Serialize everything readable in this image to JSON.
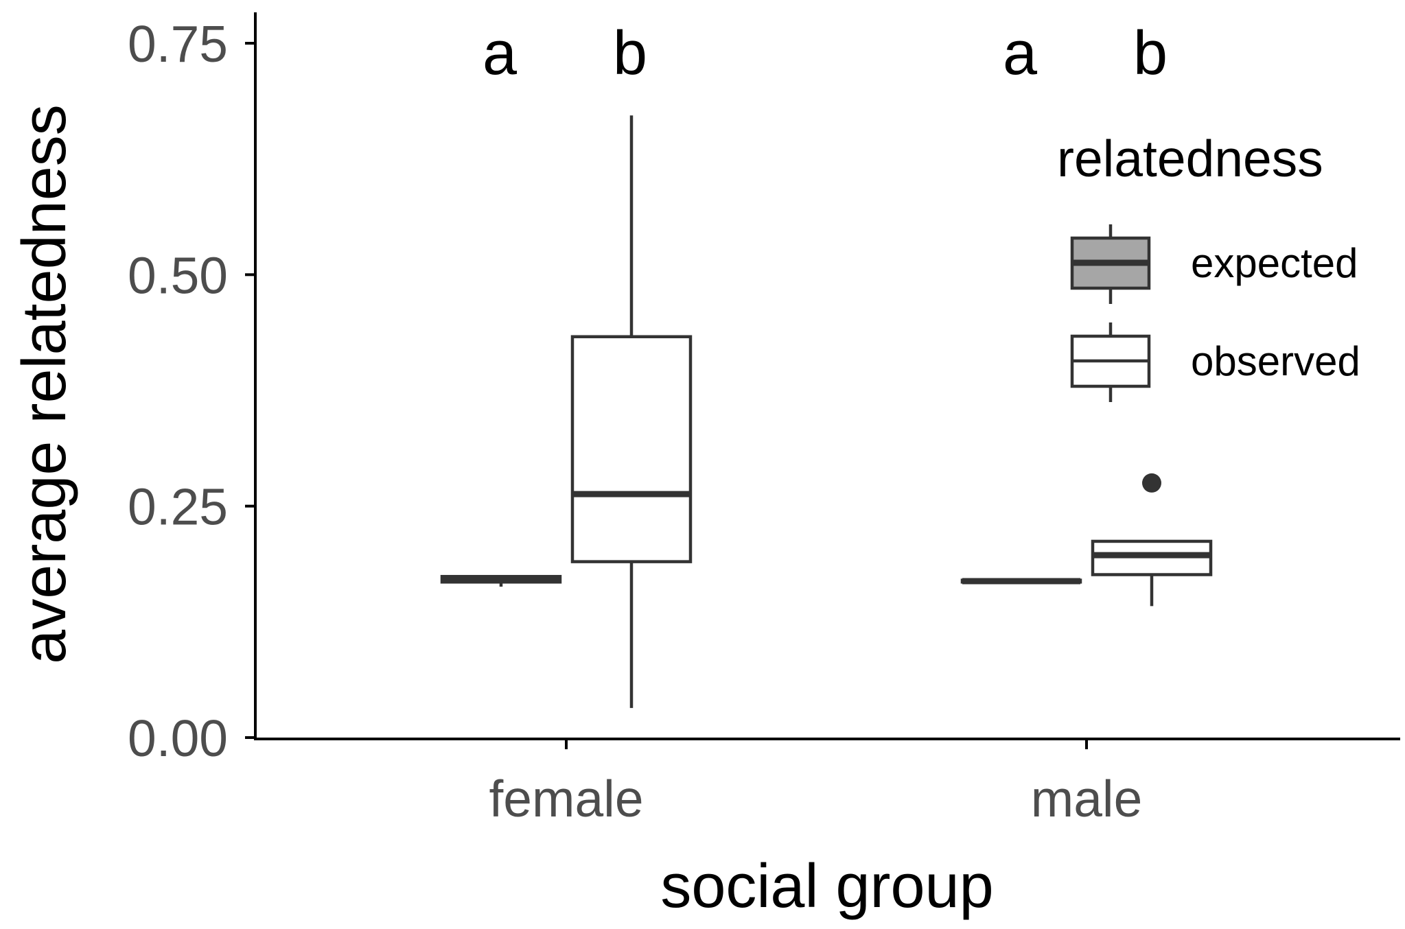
{
  "chart_data": {
    "type": "boxplot",
    "xlabel": "social group",
    "ylabel": "average relatedness",
    "ylim": [
      0,
      0.78
    ],
    "yticks": [
      0.0,
      0.25,
      0.5,
      0.75
    ],
    "ytick_labels": [
      "0.00",
      "0.25",
      "0.50",
      "0.75"
    ],
    "categories": [
      "female",
      "male"
    ],
    "legend": {
      "title": "relatedness",
      "position": "right",
      "entries": [
        {
          "name": "expected",
          "fill": "#a6a6a6"
        },
        {
          "name": "observed",
          "fill": "#ffffff"
        }
      ]
    },
    "series": [
      {
        "name": "expected",
        "fill": "#a6a6a6",
        "boxes": [
          {
            "category": "female",
            "min": 0.163,
            "q1": 0.168,
            "median": 0.171,
            "q3": 0.174,
            "max": 0.175,
            "outliers": []
          },
          {
            "category": "male",
            "min": 0.167,
            "q1": 0.168,
            "median": 0.169,
            "q3": 0.17,
            "max": 0.171,
            "outliers": []
          }
        ]
      },
      {
        "name": "observed",
        "fill": "#ffffff",
        "boxes": [
          {
            "category": "female",
            "min": 0.032,
            "q1": 0.19,
            "median": 0.263,
            "q3": 0.433,
            "max": 0.672,
            "outliers": []
          },
          {
            "category": "male",
            "min": 0.142,
            "q1": 0.176,
            "median": 0.197,
            "q3": 0.212,
            "max": 0.213,
            "outliers": [
              0.275
            ]
          }
        ]
      }
    ],
    "annotations": [
      {
        "category": "female",
        "series": "expected",
        "text": "a"
      },
      {
        "category": "female",
        "series": "observed",
        "text": "b"
      },
      {
        "category": "male",
        "series": "expected",
        "text": "a"
      },
      {
        "category": "male",
        "series": "observed",
        "text": "b"
      }
    ],
    "colors": {
      "outline": "#333333",
      "axis": "#000000",
      "tick_text": "#4d4d4d"
    }
  }
}
